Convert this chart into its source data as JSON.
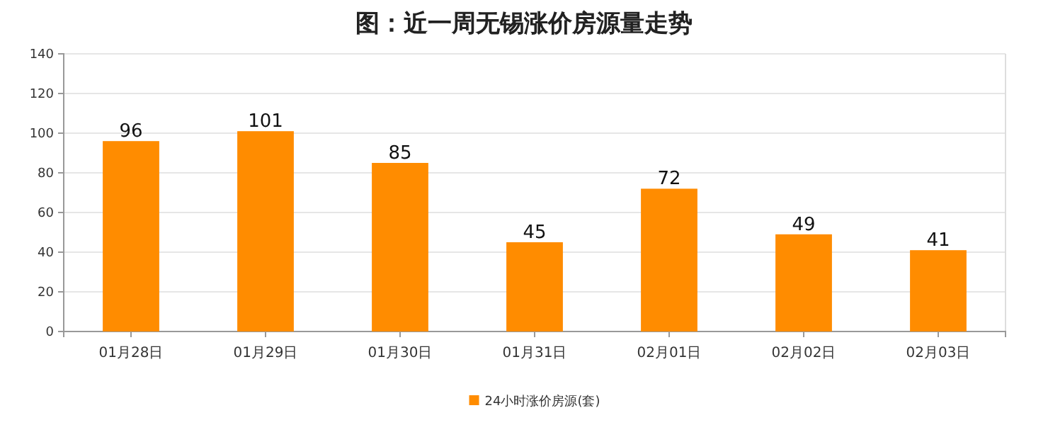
{
  "chart_data": {
    "type": "bar",
    "title": "图：近一周无锡涨价房源量走势",
    "categories": [
      "01月28日",
      "01月29日",
      "01月30日",
      "01月31日",
      "02月01日",
      "02月02日",
      "02月03日"
    ],
    "series": [
      {
        "name": "24小时涨价房源(套)",
        "color": "#ff8c00",
        "values": [
          96,
          101,
          85,
          45,
          72,
          49,
          41
        ]
      }
    ],
    "ylim": [
      0,
      140
    ],
    "yticks": [
      0,
      20,
      40,
      60,
      80,
      100,
      120,
      140
    ],
    "grid": "y",
    "legend": "bottom",
    "data_labels": true
  }
}
